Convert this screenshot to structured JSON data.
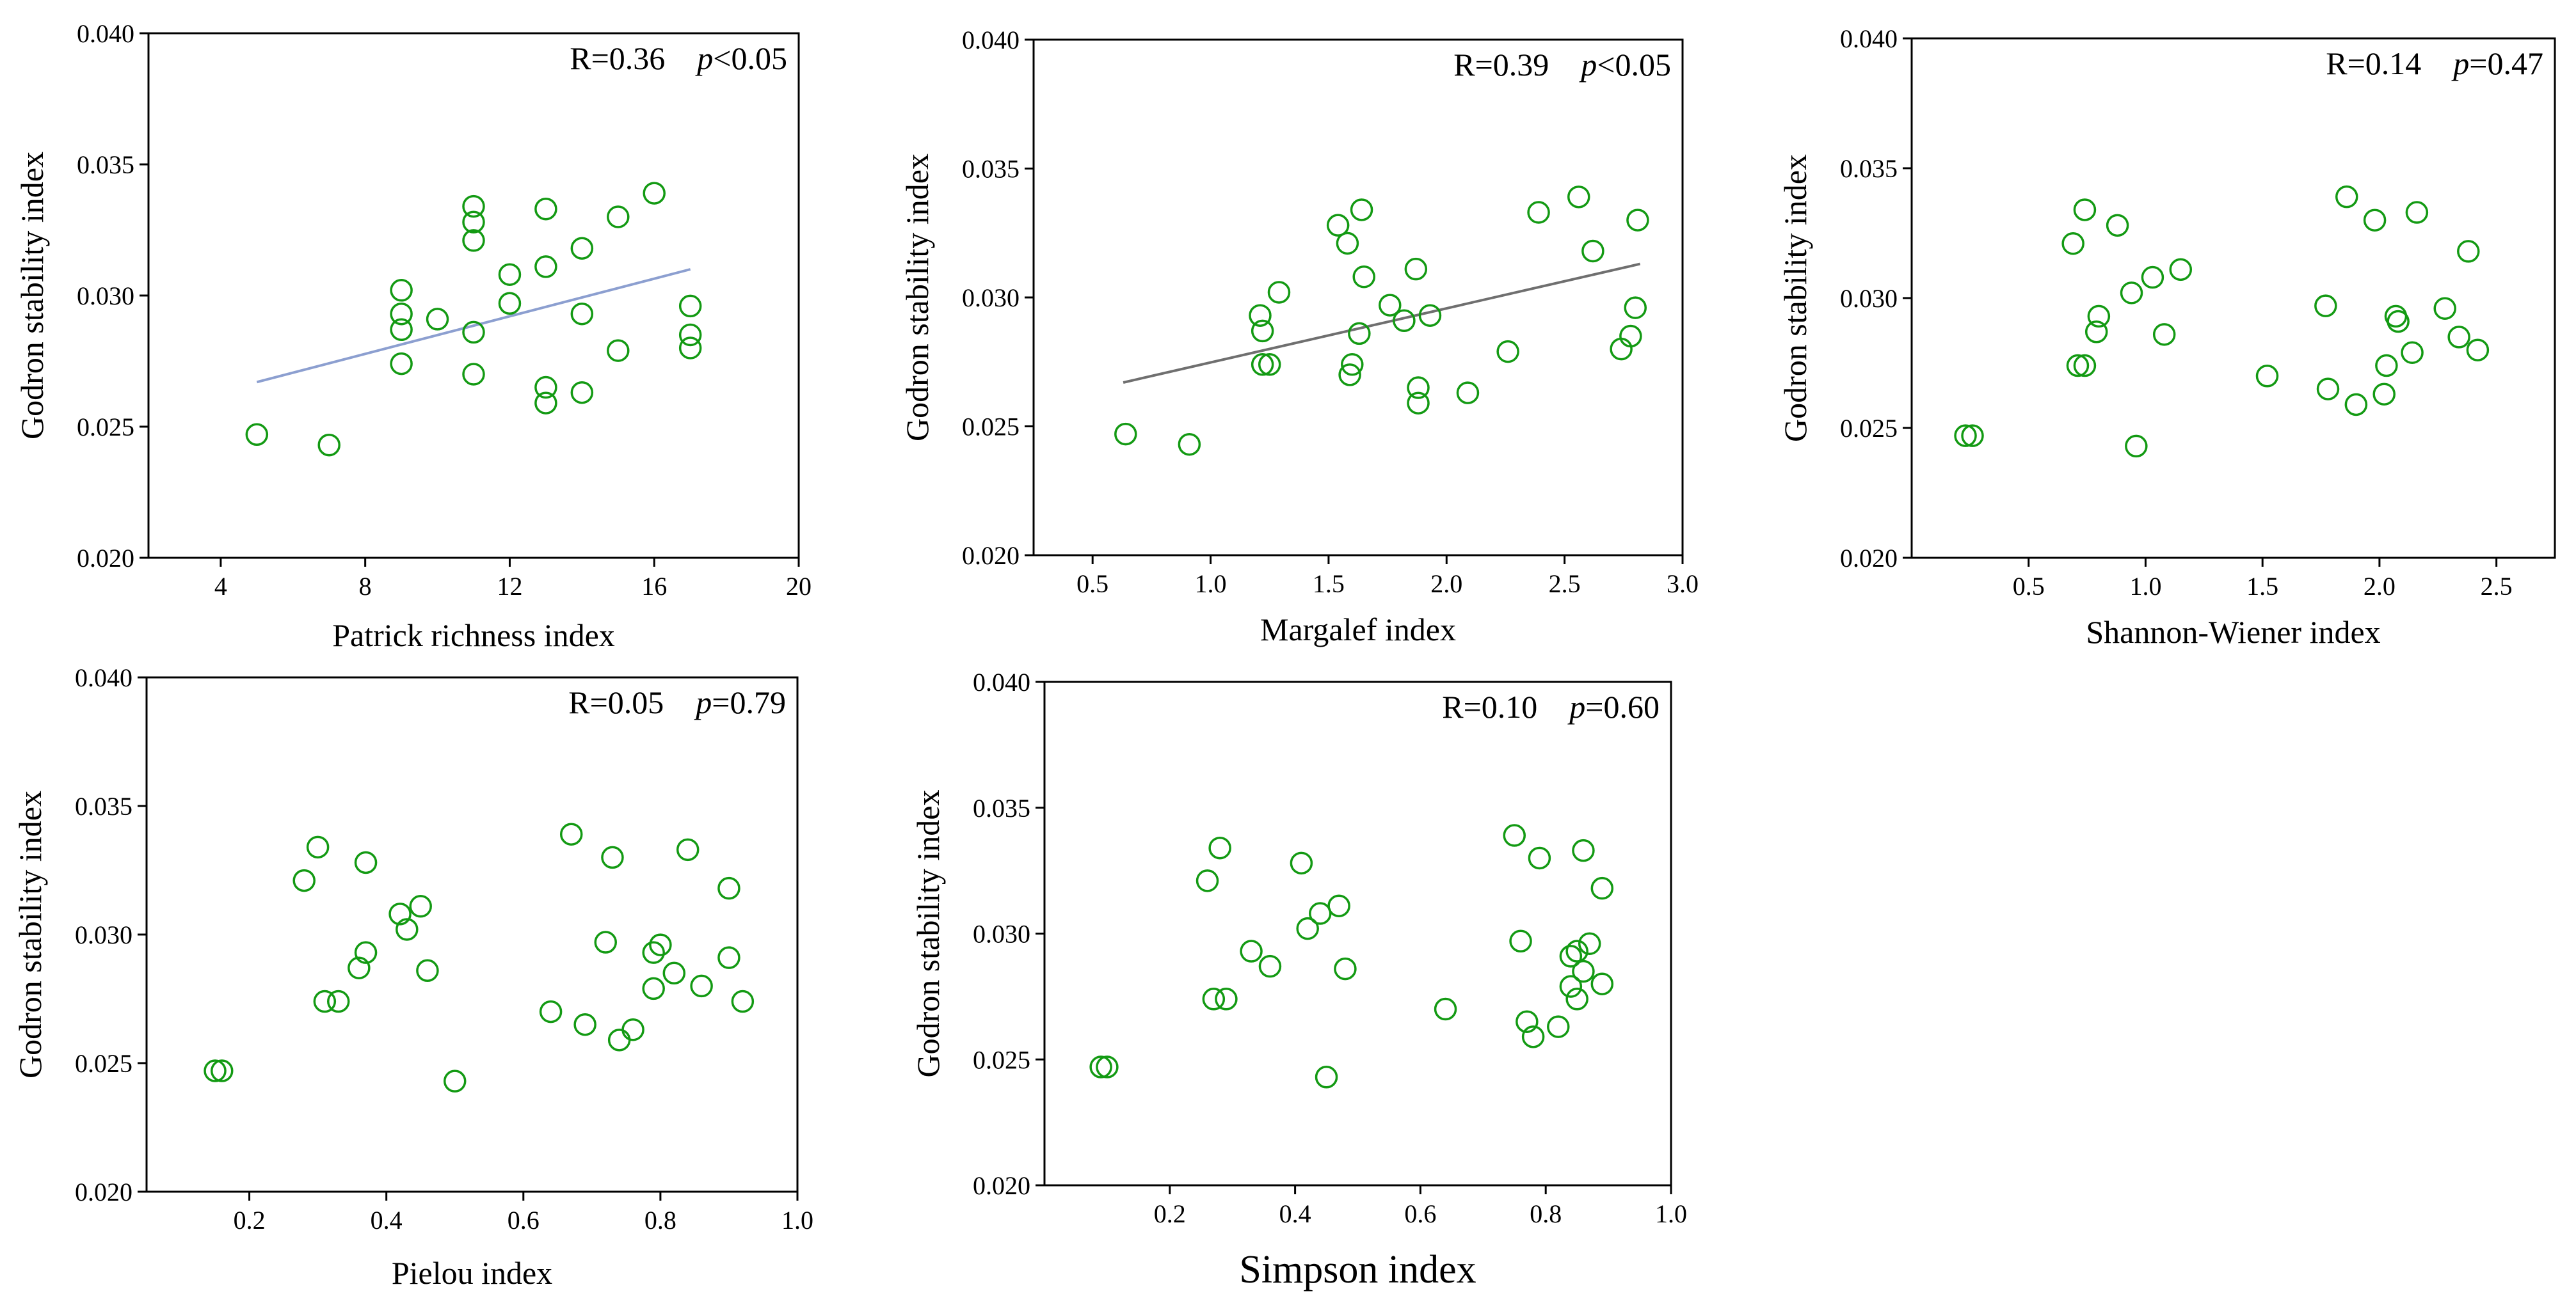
{
  "colors": {
    "point": "#139a13",
    "fit_blue": "#8c9fd0",
    "fit_gray": "#6f6f6f"
  },
  "chart_data": [
    {
      "type": "scatter",
      "title": "",
      "xlabel": "Patrick richness index",
      "ylabel": "Godron stability index",
      "xlim": [
        2,
        20
      ],
      "ylim": [
        0.02,
        0.04
      ],
      "xticks": [
        4,
        8,
        12,
        16,
        20
      ],
      "xtick_labels": [
        "4",
        "8",
        "12",
        "16",
        "20"
      ],
      "yticks": [
        0.02,
        0.025,
        0.03,
        0.035,
        0.04
      ],
      "ytick_labels": [
        "0.020",
        "0.025",
        "0.030",
        "0.035",
        "0.040"
      ],
      "annotation": {
        "r_text": "R=0.36",
        "p_symbol": "p",
        "p_text": "<0.05"
      },
      "fit_line": {
        "x": [
          5,
          17
        ],
        "y": [
          0.0267,
          0.031
        ],
        "color": "fit_blue"
      },
      "points": [
        [
          5,
          0.0247
        ],
        [
          7,
          0.0243
        ],
        [
          9,
          0.0302
        ],
        [
          9,
          0.0293
        ],
        [
          9,
          0.0287
        ],
        [
          9,
          0.0274
        ],
        [
          10,
          0.0291
        ],
        [
          11,
          0.0334
        ],
        [
          11,
          0.0328
        ],
        [
          11,
          0.0321
        ],
        [
          11,
          0.0286
        ],
        [
          11,
          0.027
        ],
        [
          12,
          0.0308
        ],
        [
          12,
          0.0297
        ],
        [
          13,
          0.0333
        ],
        [
          13,
          0.0311
        ],
        [
          13,
          0.0265
        ],
        [
          13,
          0.0259
        ],
        [
          14,
          0.0318
        ],
        [
          14,
          0.0293
        ],
        [
          14,
          0.0263
        ],
        [
          15,
          0.033
        ],
        [
          15,
          0.0279
        ],
        [
          16,
          0.0339
        ],
        [
          17,
          0.0296
        ],
        [
          17,
          0.0285
        ],
        [
          17,
          0.028
        ]
      ]
    },
    {
      "type": "scatter",
      "title": "",
      "xlabel": "Margalef index",
      "ylabel": "Godron stability index",
      "xlim": [
        0.25,
        3.0
      ],
      "ylim": [
        0.02,
        0.04
      ],
      "xticks": [
        0.5,
        1.0,
        1.5,
        2.0,
        2.5,
        3.0
      ],
      "xtick_labels": [
        "0.5",
        "1.0",
        "1.5",
        "2.0",
        "2.5",
        "3.0"
      ],
      "yticks": [
        0.02,
        0.025,
        0.03,
        0.035,
        0.04
      ],
      "ytick_labels": [
        "0.020",
        "0.025",
        "0.030",
        "0.035",
        "0.040"
      ],
      "annotation": {
        "r_text": "R=0.39",
        "p_symbol": "p",
        "p_text": "<0.05"
      },
      "fit_line": {
        "x": [
          0.63,
          2.82
        ],
        "y": [
          0.0267,
          0.0313
        ],
        "color": "fit_gray"
      },
      "points": [
        [
          0.64,
          0.0247
        ],
        [
          0.91,
          0.0243
        ],
        [
          1.21,
          0.0293
        ],
        [
          1.22,
          0.0287
        ],
        [
          1.22,
          0.0274
        ],
        [
          1.25,
          0.0274
        ],
        [
          1.29,
          0.0302
        ],
        [
          1.54,
          0.0328
        ],
        [
          1.58,
          0.0321
        ],
        [
          1.59,
          0.027
        ],
        [
          1.6,
          0.0274
        ],
        [
          1.63,
          0.0286
        ],
        [
          1.64,
          0.0334
        ],
        [
          1.65,
          0.0308
        ],
        [
          1.76,
          0.0297
        ],
        [
          1.82,
          0.0291
        ],
        [
          1.87,
          0.0311
        ],
        [
          1.88,
          0.0265
        ],
        [
          1.88,
          0.0259
        ],
        [
          1.93,
          0.0293
        ],
        [
          2.09,
          0.0263
        ],
        [
          2.26,
          0.0279
        ],
        [
          2.39,
          0.0333
        ],
        [
          2.56,
          0.0339
        ],
        [
          2.62,
          0.0318
        ],
        [
          2.74,
          0.028
        ],
        [
          2.78,
          0.0285
        ],
        [
          2.8,
          0.0296
        ],
        [
          2.81,
          0.033
        ]
      ]
    },
    {
      "type": "scatter",
      "title": "",
      "xlabel": "Shannon-Wiener index",
      "ylabel": "Godron stability index",
      "xlim": [
        0.0,
        2.75
      ],
      "ylim": [
        0.02,
        0.04
      ],
      "xticks": [
        0.5,
        1.0,
        1.5,
        2.0,
        2.5
      ],
      "xtick_labels": [
        "0.5",
        "1.0",
        "1.5",
        "2.0",
        "2.5"
      ],
      "yticks": [
        0.02,
        0.025,
        0.03,
        0.035,
        0.04
      ],
      "ytick_labels": [
        "0.020",
        "0.025",
        "0.030",
        "0.035",
        "0.040"
      ],
      "annotation": {
        "r_text": "R=0.14",
        "p_symbol": "p",
        "p_text": "=0.47"
      },
      "points": [
        [
          0.23,
          0.0247
        ],
        [
          0.26,
          0.0247
        ],
        [
          0.69,
          0.0321
        ],
        [
          0.71,
          0.0274
        ],
        [
          0.74,
          0.0274
        ],
        [
          0.74,
          0.0334
        ],
        [
          0.79,
          0.0287
        ],
        [
          0.8,
          0.0293
        ],
        [
          0.88,
          0.0328
        ],
        [
          0.94,
          0.0302
        ],
        [
          0.96,
          0.0243
        ],
        [
          1.03,
          0.0308
        ],
        [
          1.08,
          0.0286
        ],
        [
          1.15,
          0.0311
        ],
        [
          1.52,
          0.027
        ],
        [
          1.77,
          0.0297
        ],
        [
          1.78,
          0.0265
        ],
        [
          1.86,
          0.0339
        ],
        [
          1.9,
          0.0259
        ],
        [
          1.98,
          0.033
        ],
        [
          2.02,
          0.0263
        ],
        [
          2.03,
          0.0274
        ],
        [
          2.07,
          0.0293
        ],
        [
          2.08,
          0.0291
        ],
        [
          2.14,
          0.0279
        ],
        [
          2.16,
          0.0333
        ],
        [
          2.28,
          0.0296
        ],
        [
          2.34,
          0.0285
        ],
        [
          2.38,
          0.0318
        ],
        [
          2.42,
          0.028
        ]
      ]
    },
    {
      "type": "scatter",
      "title": "",
      "xlabel": "Pielou index",
      "ylabel": "Godron stability index",
      "xlim": [
        0.05,
        1.0
      ],
      "ylim": [
        0.02,
        0.04
      ],
      "xticks": [
        0.2,
        0.4,
        0.6,
        0.8,
        1.0
      ],
      "xtick_labels": [
        "0.2",
        "0.4",
        "0.6",
        "0.8",
        "1.0"
      ],
      "yticks": [
        0.02,
        0.025,
        0.03,
        0.035,
        0.04
      ],
      "ytick_labels": [
        "0.020",
        "0.025",
        "0.030",
        "0.035",
        "0.040"
      ],
      "annotation": {
        "r_text": "R=0.05",
        "p_symbol": "p",
        "p_text": "=0.79"
      },
      "points": [
        [
          0.15,
          0.0247
        ],
        [
          0.16,
          0.0247
        ],
        [
          0.28,
          0.0321
        ],
        [
          0.3,
          0.0334
        ],
        [
          0.31,
          0.0274
        ],
        [
          0.33,
          0.0274
        ],
        [
          0.36,
          0.0287
        ],
        [
          0.37,
          0.0293
        ],
        [
          0.37,
          0.0328
        ],
        [
          0.42,
          0.0308
        ],
        [
          0.43,
          0.0302
        ],
        [
          0.45,
          0.0311
        ],
        [
          0.46,
          0.0286
        ],
        [
          0.5,
          0.0243
        ],
        [
          0.64,
          0.027
        ],
        [
          0.67,
          0.0339
        ],
        [
          0.69,
          0.0265
        ],
        [
          0.72,
          0.0297
        ],
        [
          0.73,
          0.033
        ],
        [
          0.74,
          0.0259
        ],
        [
          0.76,
          0.0263
        ],
        [
          0.79,
          0.0279
        ],
        [
          0.79,
          0.0293
        ],
        [
          0.8,
          0.0296
        ],
        [
          0.82,
          0.0285
        ],
        [
          0.84,
          0.0333
        ],
        [
          0.86,
          0.028
        ],
        [
          0.9,
          0.0318
        ],
        [
          0.9,
          0.0291
        ],
        [
          0.92,
          0.0274
        ]
      ]
    },
    {
      "type": "scatter",
      "title": "",
      "xlabel": "Simpson index",
      "ylabel": "Godron stability index",
      "xlim": [
        0.0,
        1.0
      ],
      "ylim": [
        0.02,
        0.04
      ],
      "xticks": [
        0.2,
        0.4,
        0.6,
        0.8,
        1.0
      ],
      "xtick_labels": [
        "0.2",
        "0.4",
        "0.6",
        "0.8",
        "1.0"
      ],
      "yticks": [
        0.02,
        0.025,
        0.03,
        0.035,
        0.04
      ],
      "ytick_labels": [
        "0.020",
        "0.025",
        "0.030",
        "0.035",
        "0.040"
      ],
      "annotation": {
        "r_text": "R=0.10",
        "p_symbol": "p",
        "p_text": "=0.60"
      },
      "points": [
        [
          0.09,
          0.0247
        ],
        [
          0.1,
          0.0247
        ],
        [
          0.26,
          0.0321
        ],
        [
          0.27,
          0.0274
        ],
        [
          0.28,
          0.0334
        ],
        [
          0.29,
          0.0274
        ],
        [
          0.33,
          0.0293
        ],
        [
          0.36,
          0.0287
        ],
        [
          0.41,
          0.0328
        ],
        [
          0.42,
          0.0302
        ],
        [
          0.44,
          0.0308
        ],
        [
          0.45,
          0.0243
        ],
        [
          0.47,
          0.0311
        ],
        [
          0.48,
          0.0286
        ],
        [
          0.64,
          0.027
        ],
        [
          0.75,
          0.0339
        ],
        [
          0.76,
          0.0297
        ],
        [
          0.77,
          0.0265
        ],
        [
          0.78,
          0.0259
        ],
        [
          0.79,
          0.033
        ],
        [
          0.82,
          0.0263
        ],
        [
          0.84,
          0.0279
        ],
        [
          0.84,
          0.0291
        ],
        [
          0.85,
          0.0293
        ],
        [
          0.85,
          0.0274
        ],
        [
          0.86,
          0.0285
        ],
        [
          0.86,
          0.0333
        ],
        [
          0.87,
          0.0296
        ],
        [
          0.89,
          0.0318
        ],
        [
          0.89,
          0.028
        ]
      ]
    }
  ]
}
